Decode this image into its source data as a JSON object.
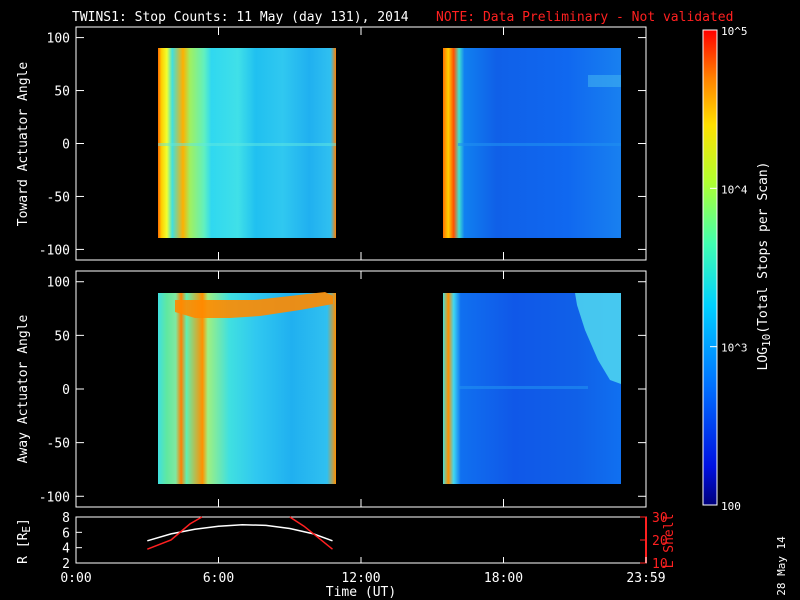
{
  "header": {
    "title": "TWINS1: Stop Counts: 11 May (day 131), 2014",
    "note": "NOTE: Data Preliminary - Not validated",
    "note_color": "#ff2020"
  },
  "date_stamp": "28 May 14",
  "colorbar": {
    "label": "LOG10(Total Stops per Scan)",
    "label_prefix": "LOG",
    "label_sub": "10",
    "label_suffix": "(Total Stops per Scan)",
    "tick_labels": [
      "10^5",
      "10^4",
      "10^3",
      "100"
    ],
    "min": 100,
    "max": 100000,
    "scale": "log",
    "colormap": "rainbow (blue to red)"
  },
  "chart_data": [
    {
      "type": "heatmap",
      "ylabel": "Toward Actuator Angle",
      "ylim": [
        -110,
        110
      ],
      "yticks": [
        "100",
        "50",
        "0",
        "-50",
        "-100"
      ],
      "data_y_range": [
        -88,
        90
      ],
      "segments": [
        {
          "start_hour": 3.2,
          "end_hour": 10.7,
          "typical_log_counts": 3.2,
          "description": "warm vertical stripes at start, cyan/green bulk"
        },
        {
          "start_hour": 15.2,
          "end_hour": 23.9,
          "typical_log_counts": 2.4,
          "description": "red/yellow edge at start, mostly blue"
        }
      ]
    },
    {
      "type": "heatmap",
      "ylabel": "Away Actuator Angle",
      "ylim": [
        -110,
        110
      ],
      "yticks": [
        "100",
        "50",
        "0",
        "-50",
        "-100"
      ],
      "data_y_range": [
        -88,
        90
      ],
      "segments": [
        {
          "start_hour": 3.2,
          "end_hour": 10.7,
          "typical_log_counts": 3.3,
          "description": "red/yellow band near +70 to +90 deg"
        },
        {
          "start_hour": 15.2,
          "end_hour": 23.9,
          "typical_log_counts": 2.4,
          "description": "mostly blue, cyan region upper right"
        }
      ]
    },
    {
      "type": "line",
      "ylabel": "R [RE]",
      "ylabel_prefix": "R [R",
      "ylabel_sub": "E",
      "ylabel_suffix": "]",
      "ylim": [
        2,
        8
      ],
      "yticks": [
        "8",
        "6",
        "4",
        "2"
      ],
      "y2label": "L Shell",
      "y2lim": [
        10,
        30
      ],
      "y2ticks": [
        "30",
        "20",
        "10"
      ],
      "y2color": "#ff2020",
      "xlabel": "Time (UT)",
      "xlim": [
        0,
        24
      ],
      "xticks": [
        "0:00",
        "6:00",
        "12:00",
        "18:00",
        "23:59"
      ],
      "series": [
        {
          "x": [
            3.0,
            4.0,
            5.0,
            6.0,
            7.0,
            8.0,
            9.0,
            10.0,
            10.8
          ],
          "y": [
            4.9,
            5.8,
            6.4,
            6.8,
            7.0,
            6.9,
            6.5,
            5.8,
            4.9
          ],
          "color": "#ffffff"
        },
        {
          "x": [
            3.0,
            4.0,
            4.8,
            5.3
          ],
          "y2": [
            16,
            20,
            27,
            30
          ],
          "color": "#ff2020"
        },
        {
          "x": [
            9.0,
            9.6,
            10.2,
            10.8
          ],
          "y2": [
            30,
            26,
            21,
            16
          ],
          "color": "#ff2020"
        }
      ]
    }
  ]
}
